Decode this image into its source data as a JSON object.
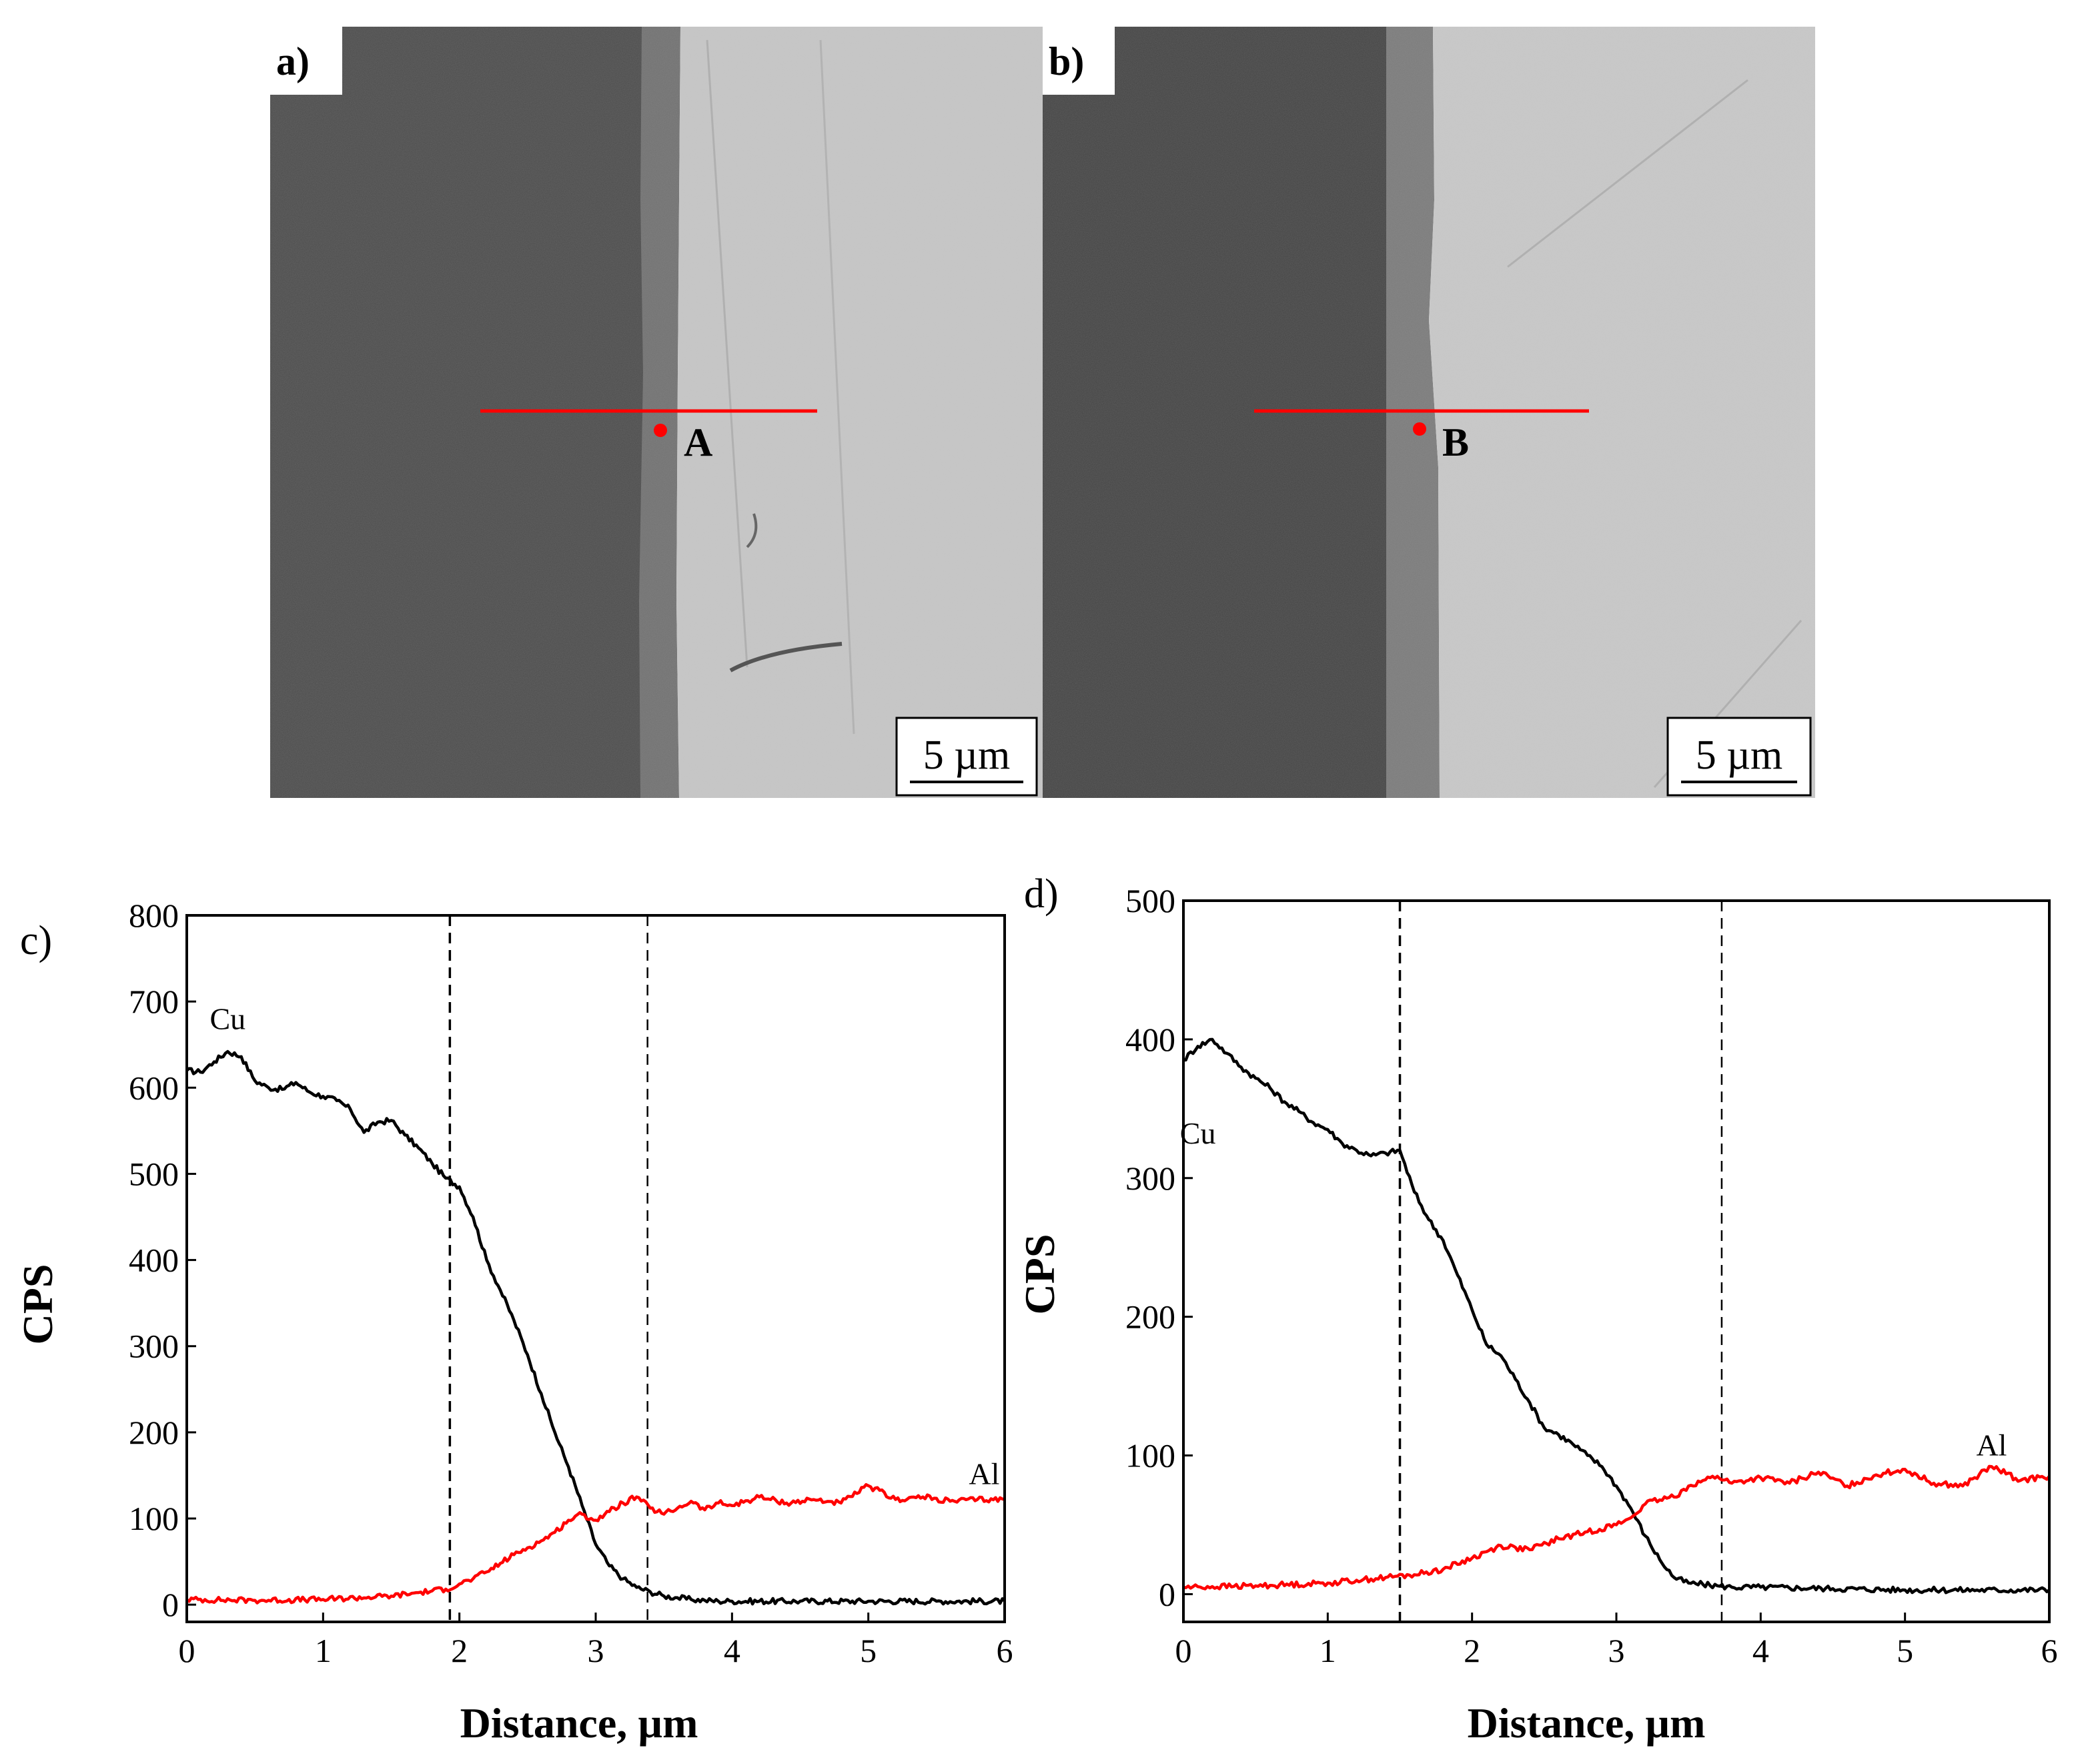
{
  "micrographs": [
    {
      "label": "a)",
      "point_label": "A",
      "scale_bar": "5 µm",
      "colors": {
        "left_phase": "#4b4b4b",
        "interlayer": "#707070",
        "right_phase": "#c7c7c7",
        "marker": "#ff0000"
      }
    },
    {
      "label": "b)",
      "point_label": "B",
      "scale_bar": "5 µm",
      "colors": {
        "left_phase": "#434343",
        "interlayer": "#7a7a7a",
        "right_phase": "#c9c9c9",
        "marker": "#ff0000"
      }
    }
  ],
  "chart_data": [
    {
      "type": "line",
      "panel_label": "c)",
      "xlabel": "Distance, µm",
      "ylabel": "CPS",
      "xlim": [
        0,
        6
      ],
      "ylim": [
        -20,
        800
      ],
      "xticks": [
        0,
        1,
        2,
        3,
        4,
        5,
        6
      ],
      "yticks": [
        0,
        100,
        200,
        300,
        400,
        500,
        600,
        700,
        800
      ],
      "vlines": [
        1.93,
        3.38
      ],
      "series": [
        {
          "name": "Cu",
          "color": "#000000",
          "label_at": [
            0.3,
            668
          ],
          "x": [
            0,
            0.1,
            0.2,
            0.3,
            0.4,
            0.5,
            0.6,
            0.7,
            0.8,
            0.9,
            1.0,
            1.1,
            1.2,
            1.3,
            1.4,
            1.5,
            1.6,
            1.7,
            1.8,
            1.9,
            2.0,
            2.1,
            2.2,
            2.3,
            2.4,
            2.5,
            2.6,
            2.7,
            2.8,
            2.9,
            3.0,
            3.1,
            3.2,
            3.3,
            3.4,
            3.5,
            3.6,
            3.7,
            3.8,
            3.9,
            4.0,
            4.5,
            5.0,
            5.5,
            6.0
          ],
          "values": [
            620,
            618,
            630,
            642,
            636,
            608,
            600,
            598,
            606,
            595,
            590,
            585,
            575,
            548,
            560,
            562,
            545,
            530,
            512,
            495,
            485,
            450,
            400,
            365,
            330,
            290,
            245,
            200,
            160,
            115,
            70,
            45,
            30,
            20,
            15,
            10,
            8,
            6,
            5,
            4,
            4,
            4,
            4,
            4,
            4
          ]
        },
        {
          "name": "Al",
          "color": "#ff0000",
          "label_at": [
            5.85,
            140
          ],
          "x": [
            0,
            0.5,
            1.0,
            1.5,
            1.7,
            1.8,
            1.9,
            2.0,
            2.1,
            2.2,
            2.3,
            2.4,
            2.5,
            2.6,
            2.7,
            2.8,
            2.9,
            3.0,
            3.1,
            3.2,
            3.3,
            3.4,
            3.5,
            3.6,
            3.7,
            3.8,
            3.9,
            4.0,
            4.2,
            4.4,
            4.6,
            4.8,
            5.0,
            5.2,
            5.4,
            5.6,
            5.8,
            6.0
          ],
          "values": [
            6,
            5,
            6,
            10,
            14,
            16,
            18,
            24,
            30,
            38,
            48,
            58,
            66,
            74,
            84,
            98,
            105,
            98,
            108,
            118,
            125,
            112,
            105,
            112,
            120,
            110,
            118,
            115,
            125,
            118,
            122,
            118,
            138,
            122,
            125,
            120,
            122,
            122
          ]
        }
      ]
    },
    {
      "type": "line",
      "panel_label": "d)",
      "xlabel": "Distance, µm",
      "ylabel": "CPS",
      "xlim": [
        0,
        6
      ],
      "ylim": [
        -20,
        500
      ],
      "xticks": [
        0,
        1,
        2,
        3,
        4,
        5,
        6
      ],
      "yticks": [
        0,
        100,
        200,
        300,
        400,
        500
      ],
      "vlines": [
        1.5,
        3.73
      ],
      "series": [
        {
          "name": "Cu",
          "color": "#000000",
          "label_at": [
            0.1,
            325
          ],
          "x": [
            0,
            0.1,
            0.2,
            0.3,
            0.4,
            0.5,
            0.6,
            0.7,
            0.8,
            0.9,
            1.0,
            1.1,
            1.2,
            1.3,
            1.4,
            1.5,
            1.6,
            1.7,
            1.8,
            1.9,
            2.0,
            2.1,
            2.2,
            2.3,
            2.4,
            2.5,
            2.6,
            2.7,
            2.8,
            2.9,
            3.0,
            3.1,
            3.2,
            3.3,
            3.4,
            3.5,
            3.6,
            3.7,
            3.8,
            4.0,
            4.5,
            5.0,
            5.5,
            6.0
          ],
          "values": [
            385,
            395,
            400,
            390,
            380,
            372,
            365,
            355,
            348,
            340,
            335,
            325,
            320,
            316,
            318,
            320,
            290,
            270,
            255,
            230,
            205,
            180,
            172,
            155,
            138,
            120,
            115,
            108,
            100,
            92,
            78,
            62,
            42,
            25,
            12,
            8,
            7,
            6,
            5,
            5,
            4,
            3,
            3,
            3
          ]
        },
        {
          "name": "Al",
          "color": "#ff0000",
          "label_at": [
            5.6,
            100
          ],
          "x": [
            0,
            0.5,
            1.0,
            1.2,
            1.4,
            1.6,
            1.8,
            2.0,
            2.2,
            2.4,
            2.6,
            2.8,
            3.0,
            3.1,
            3.2,
            3.3,
            3.4,
            3.5,
            3.6,
            3.7,
            3.8,
            4.0,
            4.2,
            4.4,
            4.6,
            4.8,
            5.0,
            5.2,
            5.4,
            5.6,
            5.8,
            6.0
          ],
          "values": [
            5,
            6,
            8,
            10,
            12,
            14,
            18,
            26,
            35,
            32,
            40,
            45,
            50,
            55,
            65,
            68,
            70,
            78,
            82,
            85,
            80,
            84,
            80,
            88,
            78,
            86,
            90,
            80,
            78,
            92,
            82,
            85
          ]
        }
      ]
    }
  ]
}
